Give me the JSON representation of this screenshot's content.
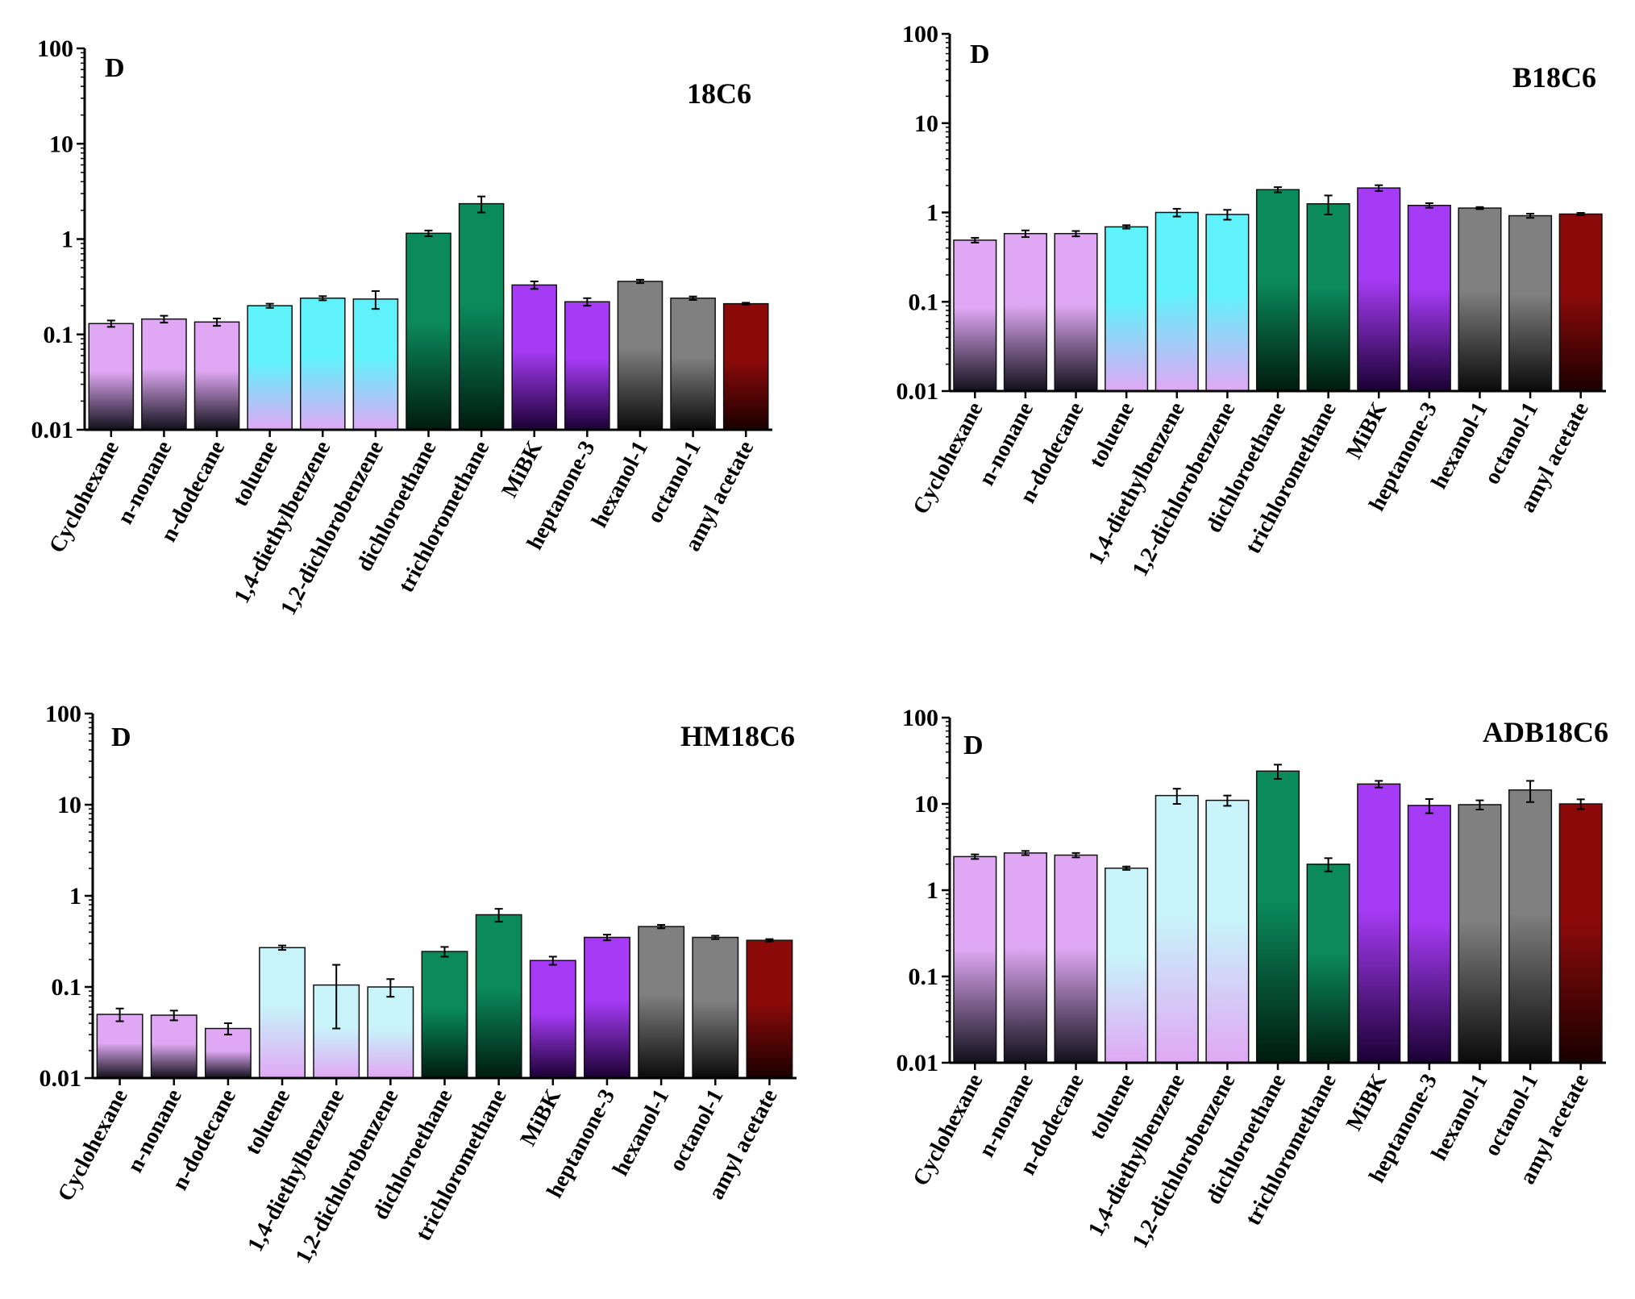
{
  "figure": {
    "layout": "2x2 grid"
  },
  "chart_data": [
    {
      "type": "bar",
      "title": "18C6",
      "ylabel": "D",
      "yscale": "log",
      "ylim": [
        0.01,
        100
      ],
      "yticks": [
        "0.01",
        "0.1",
        "1",
        "10",
        "100"
      ],
      "categories": [
        "Cyclohexane",
        "n-nonane",
        "n-dodecane",
        "toluene",
        "1,4-diethylbenzene",
        "1,2-dichlorobenzene",
        "dichloroethane",
        "trichloromethane",
        "MiBK",
        "heptanone-3",
        "hexanol-1",
        "octanol-1",
        "amyl acetate"
      ],
      "values": [
        0.13,
        0.145,
        0.135,
        0.2,
        0.24,
        0.235,
        1.15,
        2.35,
        0.33,
        0.22,
        0.36,
        0.24,
        0.21
      ],
      "errors": [
        0.01,
        0.012,
        0.012,
        0.01,
        0.012,
        0.05,
        0.08,
        0.45,
        0.03,
        0.02,
        0.015,
        0.01,
        0.005
      ],
      "colors": [
        "#e0a8f4",
        "#e0a8f4",
        "#e0a8f4",
        "#60f2fa",
        "#60f2fa",
        "#60f2fa",
        "#0b8a5c",
        "#0b8a5c",
        "#a63bf5",
        "#a63bf5",
        "#808080",
        "#808080",
        "#8c0a0a"
      ],
      "fade_to": [
        "#10101a",
        "#10101a",
        "#10101a",
        "#e0a8f4",
        "#e0a8f4",
        "#e0a8f4",
        "#001a0f",
        "#001a0f",
        "#1a0033",
        "#1a0033",
        "#0a0a0a",
        "#0a0a0a",
        "#1a0000"
      ],
      "grid": false,
      "legend": "none"
    },
    {
      "type": "bar",
      "title": "B18C6",
      "ylabel": "D",
      "yscale": "log",
      "ylim": [
        0.01,
        100
      ],
      "yticks": [
        "0.01",
        "0.1",
        "1",
        "10",
        "100"
      ],
      "categories": [
        "Cyclohexane",
        "n-nonane",
        "n-dodecane",
        "toluene",
        "1,4-diethylbenzene",
        "1,2-dichlorobenzene",
        "dichloroethane",
        "trichloromethane",
        "MiBK",
        "heptanone-3",
        "hexanol-1",
        "octanol-1",
        "amyl acetate"
      ],
      "values": [
        0.49,
        0.58,
        0.58,
        0.69,
        1.0,
        0.95,
        1.8,
        1.25,
        1.88,
        1.2,
        1.12,
        0.92,
        0.96
      ],
      "errors": [
        0.03,
        0.05,
        0.04,
        0.03,
        0.1,
        0.12,
        0.12,
        0.3,
        0.14,
        0.07,
        0.03,
        0.05,
        0.03
      ],
      "colors": [
        "#e0a8f4",
        "#e0a8f4",
        "#e0a8f4",
        "#60f2fa",
        "#60f2fa",
        "#60f2fa",
        "#0b8a5c",
        "#0b8a5c",
        "#a63bf5",
        "#a63bf5",
        "#808080",
        "#808080",
        "#8c0a0a"
      ],
      "fade_to": [
        "#10101a",
        "#10101a",
        "#10101a",
        "#e0a8f4",
        "#e0a8f4",
        "#e0a8f4",
        "#001a0f",
        "#001a0f",
        "#1a0033",
        "#1a0033",
        "#0a0a0a",
        "#0a0a0a",
        "#1a0000"
      ],
      "grid": false,
      "legend": "none"
    },
    {
      "type": "bar",
      "title": "HM18C6",
      "ylabel": "D",
      "yscale": "log",
      "ylim": [
        0.01,
        100
      ],
      "yticks": [
        "0.01",
        "0.1",
        "1",
        "10",
        "100"
      ],
      "categories": [
        "Cyclohexane",
        "n-nonane",
        "n-dodecane",
        "toluene",
        "1,4-diethylbenzene",
        "1,2-dichlorobenzene",
        "dichloroethane",
        "trichloromethane",
        "MiBK",
        "heptanone-3",
        "hexanol-1",
        "octanol-1",
        "amyl acetate"
      ],
      "values": [
        0.05,
        0.049,
        0.035,
        0.27,
        0.105,
        0.1,
        0.245,
        0.62,
        0.195,
        0.35,
        0.46,
        0.35,
        0.325
      ],
      "errors": [
        0.008,
        0.006,
        0.005,
        0.015,
        0.07,
        0.022,
        0.03,
        0.1,
        0.02,
        0.025,
        0.02,
        0.015,
        0.01
      ],
      "colors": [
        "#e0a8f4",
        "#e0a8f4",
        "#e0a8f4",
        "#c8f4fa",
        "#c8f4fa",
        "#c8f4fa",
        "#0b8a5c",
        "#0b8a5c",
        "#a63bf5",
        "#a63bf5",
        "#808080",
        "#808080",
        "#8c0a0a"
      ],
      "fade_to": [
        "#10101a",
        "#10101a",
        "#10101a",
        "#e0a8f4",
        "#e0a8f4",
        "#e0a8f4",
        "#001a0f",
        "#001a0f",
        "#1a0033",
        "#1a0033",
        "#0a0a0a",
        "#0a0a0a",
        "#1a0000"
      ],
      "grid": false,
      "legend": "none"
    },
    {
      "type": "bar",
      "title": "ADB18C6",
      "ylabel": "D",
      "yscale": "log",
      "ylim": [
        0.01,
        100
      ],
      "yticks": [
        "0.01",
        "0.1",
        "1",
        "10",
        "100"
      ],
      "categories": [
        "Cyclohexane",
        "n-nonane",
        "n-dodecane",
        "toluene",
        "1,4-diethylbenzene",
        "1,2-dichlorobenzene",
        "dichloroethane",
        "trichloromethane",
        "MiBK",
        "heptanone-3",
        "hexanol-1",
        "octanol-1",
        "amyl acetate"
      ],
      "values": [
        2.45,
        2.7,
        2.55,
        1.8,
        12.5,
        11.0,
        24.0,
        2.0,
        17.0,
        9.6,
        9.8,
        14.5,
        10.0
      ],
      "errors": [
        0.15,
        0.15,
        0.15,
        0.08,
        2.5,
        1.5,
        4.5,
        0.35,
        1.5,
        1.8,
        1.2,
        4.0,
        1.3
      ],
      "colors": [
        "#e0a8f4",
        "#e0a8f4",
        "#e0a8f4",
        "#c8f4fa",
        "#c8f4fa",
        "#c8f4fa",
        "#0b8a5c",
        "#0b8a5c",
        "#a63bf5",
        "#a63bf5",
        "#808080",
        "#808080",
        "#8c0a0a"
      ],
      "fade_to": [
        "#10101a",
        "#10101a",
        "#10101a",
        "#e0a8f4",
        "#e0a8f4",
        "#e0a8f4",
        "#001a0f",
        "#001a0f",
        "#1a0033",
        "#1a0033",
        "#0a0a0a",
        "#0a0a0a",
        "#1a0000"
      ],
      "grid": false,
      "legend": "none"
    }
  ]
}
